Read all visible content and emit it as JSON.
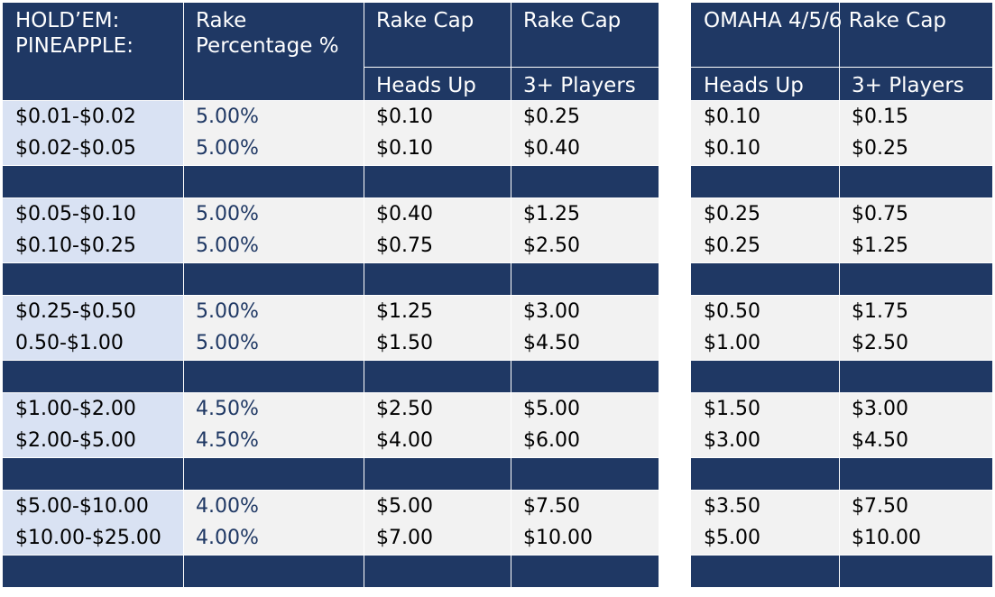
{
  "header": {
    "col1": [
      "HOLD’EM:",
      "PINEAPPLE:"
    ],
    "col2": [
      "Rake",
      "Percentage %"
    ],
    "col3_top": "Rake Cap",
    "col4_top": "Rake Cap",
    "col6_top": "OMAHA 4/5/6 Rake Cap",
    "col3_sub": "Heads Up",
    "col4_sub": "3+ Players",
    "col6_sub": "Heads Up",
    "col7_sub": "3+ Players"
  },
  "groups": [
    {
      "rows": [
        {
          "stakes": "$0.01-$0.02",
          "rake_pct": "5.00%",
          "holdem_hu": "$0.10",
          "holdem_3p": "$0.25",
          "omaha_hu": "$0.10",
          "omaha_3p": "$0.15"
        },
        {
          "stakes": "$0.02-$0.05",
          "rake_pct": "5.00%",
          "holdem_hu": "$0.10",
          "holdem_3p": "$0.40",
          "omaha_hu": "$0.10",
          "omaha_3p": "$0.25"
        }
      ]
    },
    {
      "rows": [
        {
          "stakes": "$0.05-$0.10",
          "rake_pct": "5.00%",
          "holdem_hu": "$0.40",
          "holdem_3p": "$1.25",
          "omaha_hu": "$0.25",
          "omaha_3p": "$0.75"
        },
        {
          "stakes": "$0.10-$0.25",
          "rake_pct": "5.00%",
          "holdem_hu": "$0.75",
          "holdem_3p": "$2.50",
          "omaha_hu": "$0.25",
          "omaha_3p": "$1.25"
        }
      ]
    },
    {
      "rows": [
        {
          "stakes": "$0.25-$0.50",
          "rake_pct": "5.00%",
          "holdem_hu": "$1.25",
          "holdem_3p": "$3.00",
          "omaha_hu": "$0.50",
          "omaha_3p": "$1.75"
        },
        {
          "stakes": "0.50-$1.00",
          "rake_pct": "5.00%",
          "holdem_hu": "$1.50",
          "holdem_3p": "$4.50",
          "omaha_hu": "$1.00",
          "omaha_3p": "$2.50"
        }
      ]
    },
    {
      "rows": [
        {
          "stakes": "$1.00-$2.00",
          "rake_pct": "4.50%",
          "holdem_hu": "$2.50",
          "holdem_3p": "$5.00",
          "omaha_hu": "$1.50",
          "omaha_3p": "$3.00"
        },
        {
          "stakes": "$2.00-$5.00",
          "rake_pct": "4.50%",
          "holdem_hu": "$4.00",
          "holdem_3p": "$6.00",
          "omaha_hu": "$3.00",
          "omaha_3p": "$4.50"
        }
      ]
    },
    {
      "rows": [
        {
          "stakes": "$5.00-$10.00",
          "rake_pct": "4.00%",
          "holdem_hu": "$5.00",
          "holdem_3p": "$7.50",
          "omaha_hu": "$3.50",
          "omaha_3p": "$7.50"
        },
        {
          "stakes": "$10.00-$25.00",
          "rake_pct": "4.00%",
          "holdem_hu": "$7.00",
          "holdem_3p": "$10.00",
          "omaha_hu": "$5.00",
          "omaha_3p": "$10.00"
        }
      ]
    }
  ]
}
